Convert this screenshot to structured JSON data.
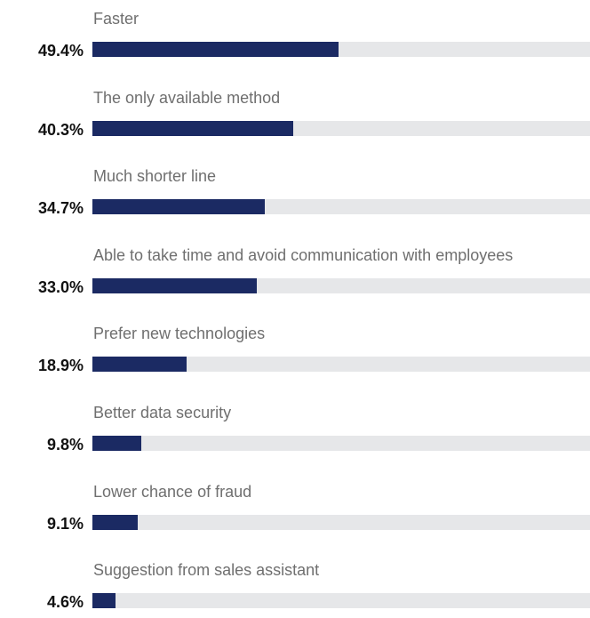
{
  "chart_data": {
    "type": "bar",
    "orientation": "horizontal",
    "categories": [
      "Faster",
      "The only available method",
      "Much shorter line",
      "Able to take time and avoid communication with employees",
      "Prefer new technologies",
      "Better data security",
      "Lower chance of fraud",
      "Suggestion from sales assistant"
    ],
    "values": [
      49.4,
      40.3,
      34.7,
      33.0,
      18.9,
      9.8,
      9.1,
      4.6
    ],
    "value_labels": [
      "49.4%",
      "40.3%",
      "34.7%",
      "33.0%",
      "18.9%",
      "9.8%",
      "9.1%",
      "4.6%"
    ],
    "xlim": [
      0,
      100
    ],
    "grid": false,
    "colors": {
      "bar": "#1b2a63",
      "track": "#e6e7e9",
      "label": "#6f6f6f",
      "value": "#111111"
    }
  }
}
